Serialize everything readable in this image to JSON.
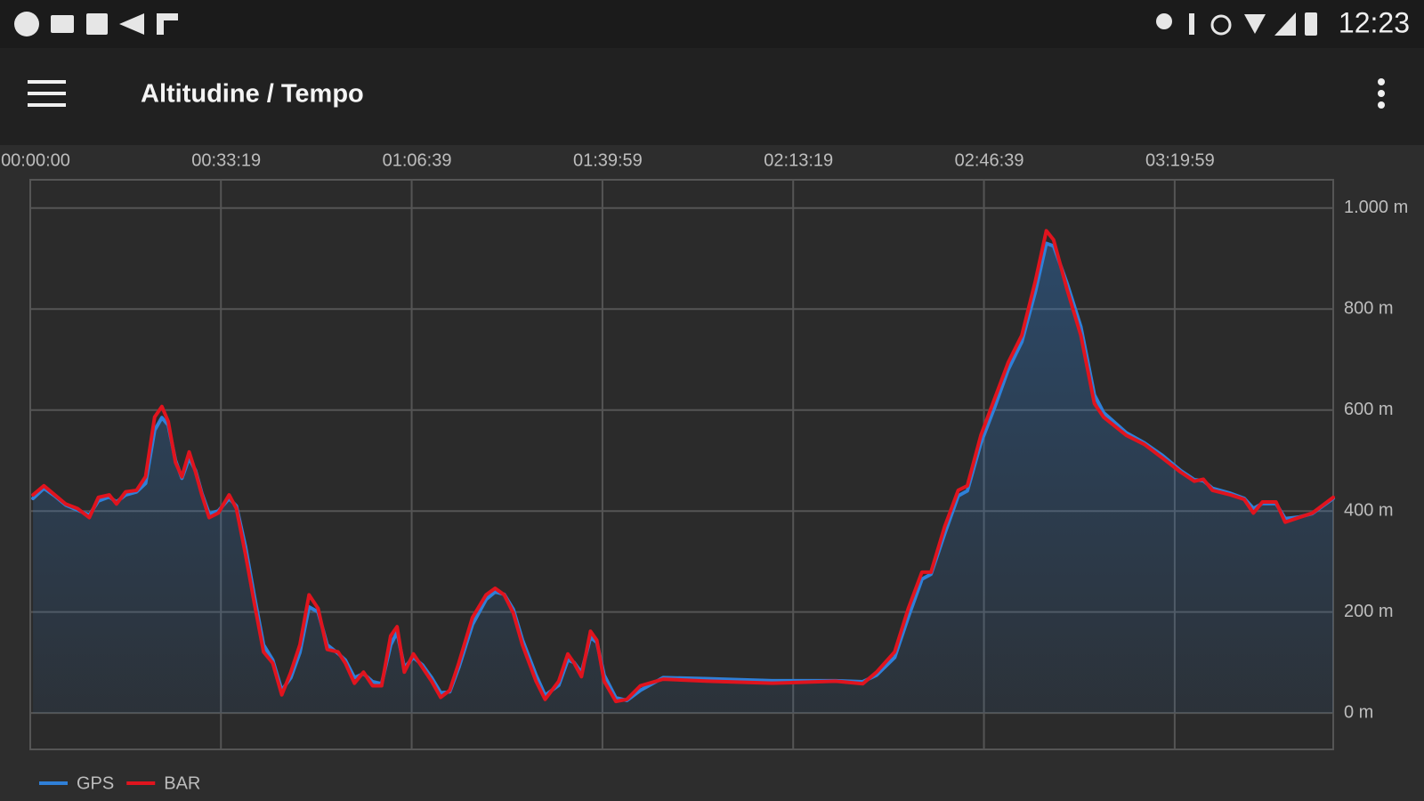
{
  "status_bar": {
    "time": "12:23"
  },
  "app_bar": {
    "title": "Altitudine / Tempo"
  },
  "chart_data": {
    "type": "line",
    "x": [
      29,
      143,
      257,
      371,
      495,
      619,
      714,
      828,
      904,
      1000,
      1114,
      1209,
      1304,
      1380,
      1447,
      1523,
      1590,
      1666,
      1733,
      1799,
      1875,
      1971,
      2085,
      2161,
      2256,
      2351,
      2446,
      2542,
      2637,
      2732,
      2827,
      2923,
      3018,
      3113,
      3227,
      3303,
      3399,
      3494,
      3589,
      3684,
      3779,
      3846,
      3922,
      4017,
      4113,
      4208,
      4303,
      4398,
      4493,
      4636,
      4779,
      4874,
      4969,
      5065,
      5160,
      5303,
      5398,
      5541,
      5636,
      5702,
      5779,
      5874,
      5940,
      6017,
      6140,
      6255,
      6397,
      6635,
      7111,
      7778,
      8444,
      8729,
      8873,
      9063,
      9206,
      9349,
      9444,
      9587,
      9729,
      9825,
      9967,
      10110,
      10253,
      10396,
      10539,
      10653,
      10729,
      10872,
      11015,
      11157,
      11253,
      11491,
      11681,
      11871,
      12062,
      12205,
      12300,
      12395,
      12585,
      12728,
      12824,
      12919,
      13061,
      13157,
      13299,
      13442,
      13661
    ],
    "series": [
      {
        "name": "GPS",
        "color": "#2f80d8",
        "values": [
          425,
          445,
          430,
          412,
          402,
          392,
          420,
          428,
          418,
          432,
          438,
          455,
          560,
          585,
          570,
          500,
          465,
          505,
          480,
          435,
          395,
          400,
          425,
          410,
          330,
          230,
          135,
          105,
          45,
          70,
          120,
          210,
          200,
          135,
          118,
          105,
          70,
          78,
          62,
          58,
          135,
          160,
          90,
          110,
          95,
          70,
          40,
          42,
          90,
          175,
          225,
          240,
          235,
          205,
          145,
          75,
          35,
          55,
          105,
          100,
          80,
          150,
          140,
          75,
          30,
          25,
          45,
          70,
          68,
          64,
          64,
          62,
          75,
          110,
          190,
          265,
          275,
          355,
          430,
          440,
          535,
          605,
          680,
          735,
          835,
          930,
          925,
          850,
          765,
          630,
          595,
          555,
          535,
          510,
          480,
          462,
          460,
          445,
          435,
          425,
          405,
          415,
          415,
          385,
          388,
          395,
          425
        ]
      },
      {
        "name": "BAR",
        "color": "#e0141e",
        "values": [
          432,
          450,
          432,
          414,
          405,
          387,
          427,
          432,
          414,
          438,
          441,
          468,
          586,
          607,
          577,
          496,
          468,
          517,
          477,
          432,
          387,
          396,
          432,
          405,
          315,
          216,
          121,
          99,
          36,
          81,
          135,
          234,
          207,
          126,
          121,
          99,
          59,
          81,
          54,
          54,
          153,
          171,
          81,
          117,
          90,
          63,
          31,
          45,
          99,
          189,
          234,
          247,
          234,
          198,
          135,
          63,
          27,
          63,
          117,
          99,
          72,
          162,
          144,
          63,
          23,
          27,
          54,
          67,
          63,
          59,
          63,
          58,
          81,
          121,
          207,
          279,
          279,
          369,
          441,
          450,
          550,
          622,
          694,
          748,
          856,
          955,
          937,
          838,
          748,
          613,
          586,
          550,
          532,
          505,
          477,
          459,
          463,
          441,
          432,
          423,
          396,
          418,
          418,
          378,
          387,
          396,
          427
        ]
      }
    ],
    "xlim": [
      0,
      13661
    ],
    "xticks": [
      {
        "value": 0,
        "label": "00:00:00"
      },
      {
        "value": 1999,
        "label": "00:33:19"
      },
      {
        "value": 3999,
        "label": "01:06:39"
      },
      {
        "value": 5999,
        "label": "01:39:59"
      },
      {
        "value": 7999,
        "label": "02:13:19"
      },
      {
        "value": 9999,
        "label": "02:46:39"
      },
      {
        "value": 11999,
        "label": "03:19:59"
      }
    ],
    "ylim": [
      -72,
      1056
    ],
    "yticks": [
      {
        "value": 0,
        "label": "0 m"
      },
      {
        "value": 200,
        "label": "200 m"
      },
      {
        "value": 400,
        "label": "400 m"
      },
      {
        "value": 600,
        "label": "600 m"
      },
      {
        "value": 800,
        "label": "800 m"
      },
      {
        "value": 1000,
        "label": "1.000 m"
      }
    ],
    "grid": true,
    "legend": "bottom-left",
    "fill_color": "#2f80d8"
  }
}
